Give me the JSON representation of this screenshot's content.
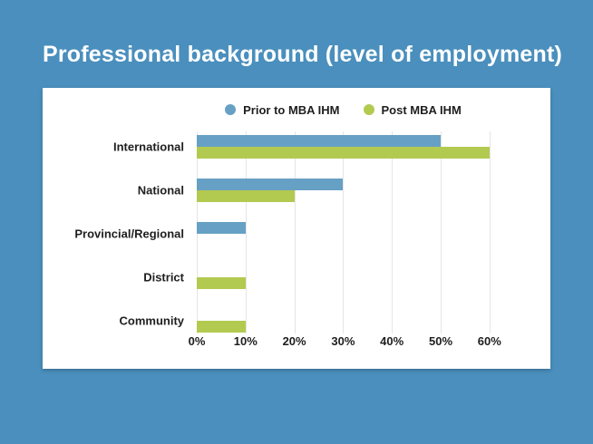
{
  "slide": {
    "title": "Professional background (level of employment)"
  },
  "colors": {
    "background": "#4a8fbd",
    "card": "#ffffff",
    "title_text": "#ffffff",
    "text_dark": "#1e1e1e",
    "gridline": "#e5e5e5",
    "prior": "#67a0c5",
    "post": "#b3ca51"
  },
  "legend": [
    {
      "label": "Prior to MBA IHM",
      "color_key": "prior"
    },
    {
      "label": "Post MBA IHM",
      "color_key": "post"
    }
  ],
  "chart_data": {
    "type": "bar",
    "orientation": "horizontal",
    "title": "Professional background (level of employment)",
    "categories": [
      "International",
      "National",
      "Provincial/Regional",
      "District",
      "Community"
    ],
    "series": [
      {
        "name": "Prior to MBA IHM",
        "color_key": "prior",
        "values": [
          50,
          30,
          10,
          0,
          0
        ]
      },
      {
        "name": "Post MBA IHM",
        "color_key": "post",
        "values": [
          60,
          20,
          0,
          10,
          10
        ]
      }
    ],
    "x_ticks": [
      "0%",
      "10%",
      "20%",
      "30%",
      "40%",
      "50%",
      "60%"
    ],
    "xlim": [
      0,
      60
    ],
    "xlabel": "",
    "ylabel": "",
    "grid": true,
    "legend_position": "top-center"
  }
}
